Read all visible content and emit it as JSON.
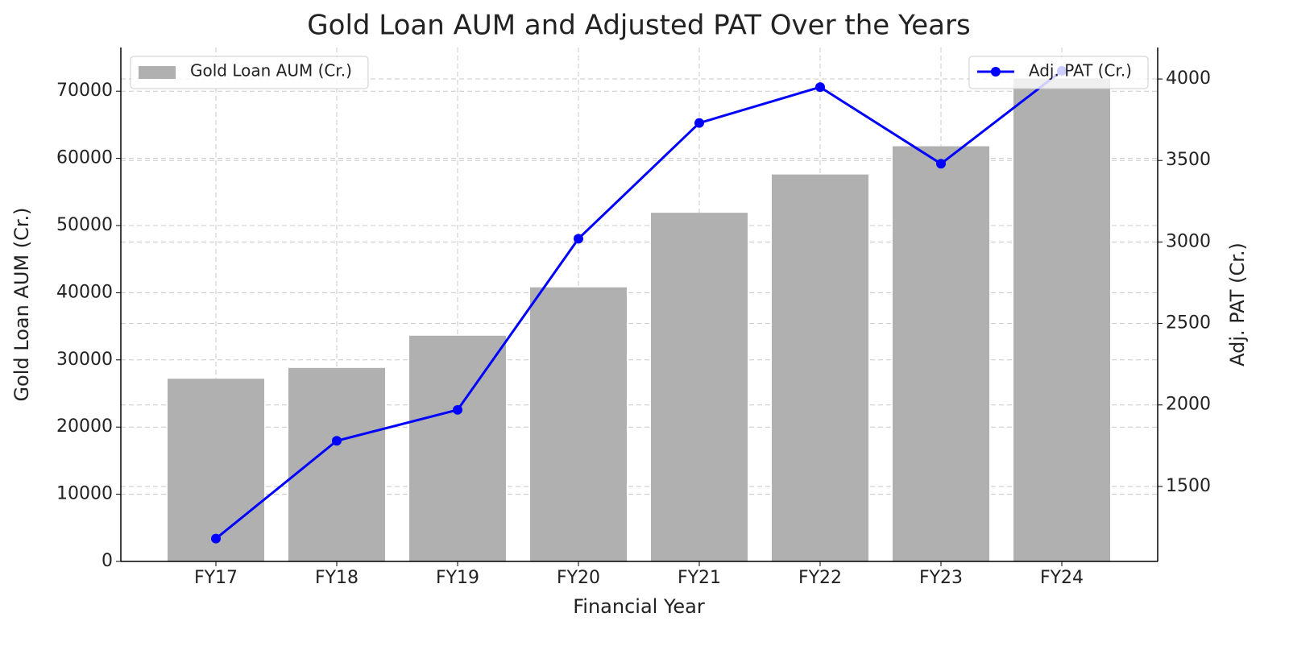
{
  "chart_data": {
    "type": "bar",
    "title": "Gold Loan AUM and Adjusted PAT Over the Years",
    "x_label": "Financial Year",
    "y_label": "Gold Loan AUM (Cr.)",
    "y2_label": "Adj. PAT (Cr.)",
    "categories": [
      "FY17",
      "FY18",
      "FY19",
      "FY20",
      "FY21",
      "FY22",
      "FY23",
      "FY24"
    ],
    "series": [
      {
        "name": "Gold Loan AUM (Cr.)",
        "type": "bar",
        "color": "#b0b0b0",
        "axis": "y",
        "legend": "upper left",
        "values": [
          27200,
          28800,
          33600,
          40800,
          51900,
          57600,
          61800,
          71900
        ]
      },
      {
        "name": "Adj. PAT (Cr.)",
        "type": "line",
        "color": "#0000ff",
        "axis": "y2",
        "legend": "upper right",
        "values": [
          1180,
          1780,
          1970,
          3020,
          3730,
          3950,
          3480,
          4050
        ]
      }
    ],
    "ylim": [
      0,
      76500
    ],
    "yticks": [
      0,
      10000,
      20000,
      30000,
      40000,
      50000,
      60000,
      70000
    ],
    "y2lim": [
      1040,
      4193
    ],
    "y2ticks": [
      1500,
      2000,
      2500,
      3000,
      3500,
      4000
    ],
    "grid": true
  }
}
